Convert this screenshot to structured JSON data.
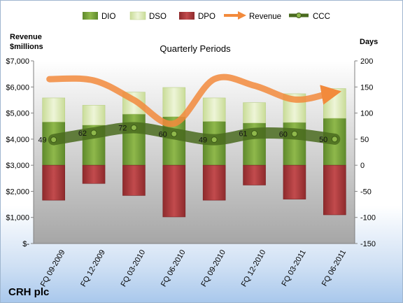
{
  "chart_data": {
    "type": "bar",
    "title": "Quarterly Periods",
    "company": "CRH plc",
    "left_axis_title_line1": "Revenue",
    "left_axis_title_line2": "$millions",
    "right_axis_title": "Days",
    "categories": [
      "FQ 09-2009",
      "FQ 12-2009",
      "FQ 03-2010",
      "FQ 06-2010",
      "FQ 09-2010",
      "FQ 12-2010",
      "FQ 03-2011",
      "FQ 06-2011"
    ],
    "left_axis": {
      "min": 0,
      "max": 7000,
      "step": 1000,
      "tick_labels": [
        "$-",
        "$1,000",
        "$2,000",
        "$3,000",
        "$4,000",
        "$5,000",
        "$6,000",
        "$7,000"
      ]
    },
    "right_axis": {
      "min": -150,
      "max": 200,
      "step": 50,
      "tick_labels": [
        "-150",
        "-100",
        "-50",
        "0",
        "50",
        "100",
        "150",
        "200"
      ]
    },
    "series": [
      {
        "name": "DIO",
        "axis": "right",
        "kind": "stacked-bar",
        "color": "#77a33a",
        "values": [
          83,
          77,
          98,
          93,
          84,
          81,
          82,
          90
        ]
      },
      {
        "name": "DSO",
        "axis": "right",
        "kind": "stacked-bar",
        "color": "#d7e6b0",
        "values": [
          46,
          38,
          42,
          56,
          45,
          39,
          55,
          57
        ]
      },
      {
        "name": "DPO",
        "axis": "right",
        "kind": "stacked-bar-negative",
        "color": "#b0393b",
        "values": [
          -67,
          -35,
          -58,
          -99,
          -67,
          -38,
          -65,
          -95
        ]
      },
      {
        "name": "Revenue",
        "axis": "left",
        "kind": "line",
        "color": "#f28a3c",
        "values": [
          6300,
          6250,
          5500,
          4600,
          6300,
          6050,
          5520,
          5750
        ]
      },
      {
        "name": "CCC",
        "axis": "right",
        "kind": "line",
        "color": "#4a6b1f",
        "values": [
          49,
          62,
          72,
          60,
          49,
          61,
          60,
          50
        ],
        "labels": [
          "49",
          "62",
          "72",
          "60",
          "49",
          "61",
          "60",
          "50"
        ]
      }
    ],
    "legend": {
      "position": "top",
      "entries": [
        "DIO",
        "DSO",
        "DPO",
        "Revenue",
        "CCC"
      ]
    },
    "grid": false
  }
}
